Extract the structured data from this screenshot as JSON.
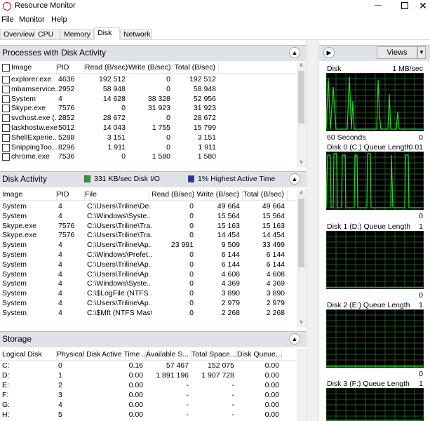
{
  "window": {
    "title": "Resource Monitor"
  },
  "menu": [
    "File",
    "Monitor",
    "Help"
  ],
  "tabs": [
    "Overview",
    "CPU",
    "Memory",
    "Disk",
    "Network"
  ],
  "processes": {
    "title": "Processes with Disk Activity",
    "columns": [
      "Image",
      "PID",
      "Read (B/sec)",
      "Write (B/sec)",
      "Total (B/sec)"
    ],
    "rows": [
      [
        "explorer.exe",
        "4636",
        "192 512",
        "0",
        "192 512"
      ],
      [
        "mbamservice...",
        "2952",
        "58 948",
        "0",
        "58 948"
      ],
      [
        "System",
        "4",
        "14 628",
        "38 328",
        "52 956"
      ],
      [
        "Skype.exe",
        "7576",
        "0",
        "31 923",
        "31 923"
      ],
      [
        "svchost.exe (...",
        "2852",
        "28 672",
        "0",
        "28 672"
      ],
      [
        "taskhostw.exe",
        "5012",
        "14 043",
        "1 755",
        "15 799"
      ],
      [
        "ShellExperie...",
        "5288",
        "3 151",
        "0",
        "3 151"
      ],
      [
        "SnippingToo...",
        "8296",
        "1 911",
        "0",
        "1 911"
      ],
      [
        "chrome.exe",
        "7536",
        "0",
        "1 580",
        "1 580"
      ]
    ]
  },
  "disk_activity": {
    "title": "Disk Activity",
    "io": "331 KB/sec Disk I/O",
    "active": "1% Highest Active Time",
    "columns": [
      "Image",
      "PID",
      "File",
      "Read (B/sec)",
      "Write (B/sec)",
      "Total (B/sec)"
    ],
    "rows": [
      [
        "System",
        "4",
        "C:\\Users\\Triline\\De...",
        "0",
        "49 664",
        "49 664"
      ],
      [
        "System",
        "4",
        "C:\\Windows\\Syste...",
        "0",
        "15 564",
        "15 564"
      ],
      [
        "Skype.exe",
        "7576",
        "C:\\Users\\Triline\\Tra...",
        "0",
        "15 163",
        "15 163"
      ],
      [
        "Skype.exe",
        "7576",
        "C:\\Users\\Triline\\Tra...",
        "0",
        "14 454",
        "14 454"
      ],
      [
        "System",
        "4",
        "C:\\Users\\Triline\\Ap...",
        "23 991",
        "9 509",
        "33 499"
      ],
      [
        "System",
        "4",
        "C:\\Windows\\Prefet...",
        "0",
        "6 144",
        "6 144"
      ],
      [
        "System",
        "4",
        "C:\\Users\\Triline\\Ap...",
        "0",
        "6 144",
        "6 144"
      ],
      [
        "System",
        "4",
        "C:\\Users\\Triline\\Ap...",
        "0",
        "4 608",
        "4 608"
      ],
      [
        "System",
        "4",
        "C:\\Windows\\Syste...",
        "0",
        "4 369",
        "4 369"
      ],
      [
        "System",
        "4",
        "C:\\$LogFile (NTFS ...",
        "0",
        "3 890",
        "3 890"
      ],
      [
        "System",
        "4",
        "C:\\Users\\Triline\\Ap...",
        "0",
        "2 979",
        "2 979"
      ],
      [
        "System",
        "4",
        "C:\\$Mft (NTFS Mast...",
        "0",
        "2 268",
        "2 268"
      ]
    ]
  },
  "storage": {
    "title": "Storage",
    "columns": [
      "Logical Disk",
      "Physical Disk",
      "Active Time ...",
      "Available S...",
      "Total Space...",
      "Disk Queue..."
    ],
    "rows": [
      [
        "C:",
        "0",
        "0.16",
        "57 467",
        "152 075",
        "0.00"
      ],
      [
        "D:",
        "1",
        "0.00",
        "1 891 196",
        "1 907 728",
        "0.00"
      ],
      [
        "E:",
        "2",
        "0.00",
        "-",
        "-",
        "0.00"
      ],
      [
        "F:",
        "3",
        "0.00",
        "-",
        "-",
        "0.00"
      ],
      [
        "G:",
        "4",
        "0.00",
        "-",
        "-",
        "0.00"
      ],
      [
        "H:",
        "5",
        "0.00",
        "-",
        "-",
        "0.00"
      ]
    ]
  },
  "side": {
    "button": "Views",
    "graphs": [
      {
        "label": "Disk",
        "max": "1 MB/sec",
        "time": "60 Seconds",
        "min": "0"
      },
      {
        "label": "Disk 0 (C:) Queue Length",
        "max": "0.01",
        "min": "0"
      },
      {
        "label": "Disk 1 (D:) Queue Length",
        "max": "1",
        "min": "0"
      },
      {
        "label": "Disk 2 (E:) Queue Length",
        "max": "1",
        "min": "0"
      },
      {
        "label": "Disk 3 (F:) Queue Length",
        "max": "1"
      }
    ]
  }
}
